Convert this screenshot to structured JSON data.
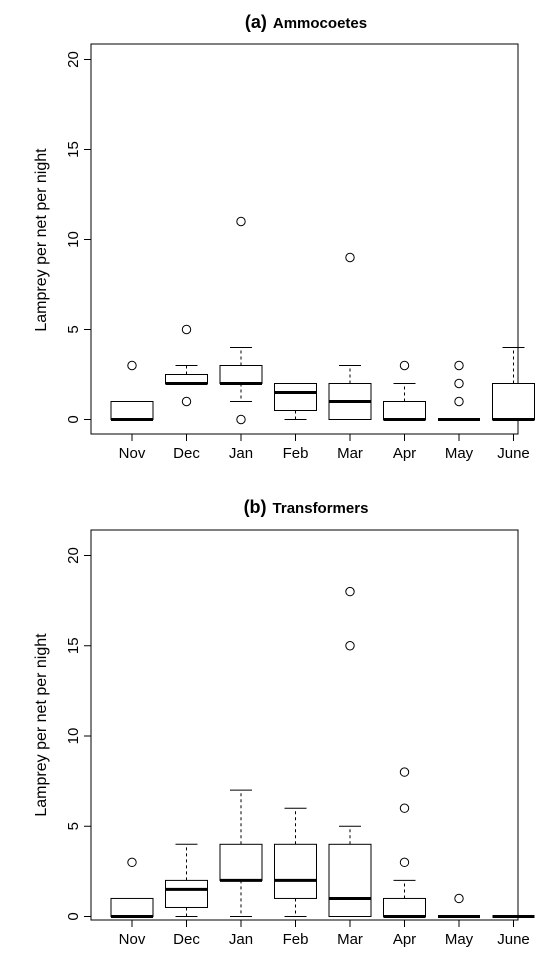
{
  "chart_data": [
    {
      "type": "boxplot",
      "title_tag": "(a)",
      "title_name": "Ammocoetes",
      "ylabel": "Lamprey per net per night",
      "xlabel": "",
      "ylim": [
        0,
        20
      ],
      "yticks": [
        0,
        5,
        10,
        15,
        20
      ],
      "grid": false,
      "categories": [
        "Nov",
        "Dec",
        "Jan",
        "Feb",
        "Mar",
        "Apr",
        "May",
        "June"
      ],
      "boxes": [
        {
          "category": "Nov",
          "q1": 0,
          "median": 0,
          "q3": 1,
          "whisker_low": 0,
          "whisker_high": 1,
          "outliers": [
            3
          ]
        },
        {
          "category": "Dec",
          "q1": 2,
          "median": 2,
          "q3": 2.5,
          "whisker_low": 2,
          "whisker_high": 3,
          "outliers": [
            5,
            1
          ]
        },
        {
          "category": "Jan",
          "q1": 2,
          "median": 2,
          "q3": 3,
          "whisker_low": 1,
          "whisker_high": 4,
          "outliers": [
            11,
            0
          ]
        },
        {
          "category": "Feb",
          "q1": 0.5,
          "median": 1.5,
          "q3": 2,
          "whisker_low": 0,
          "whisker_high": 2,
          "outliers": []
        },
        {
          "category": "Mar",
          "q1": 0,
          "median": 1,
          "q3": 2,
          "whisker_low": 0,
          "whisker_high": 3,
          "outliers": [
            9
          ]
        },
        {
          "category": "Apr",
          "q1": 0,
          "median": 0,
          "q3": 1,
          "whisker_low": 0,
          "whisker_high": 2,
          "outliers": [
            3
          ]
        },
        {
          "category": "May",
          "q1": 0,
          "median": 0,
          "q3": 0,
          "whisker_low": 0,
          "whisker_high": 0,
          "outliers": [
            3,
            2,
            1
          ]
        },
        {
          "category": "June",
          "q1": 0,
          "median": 0,
          "q3": 2,
          "whisker_low": 0,
          "whisker_high": 4,
          "outliers": []
        }
      ]
    },
    {
      "type": "boxplot",
      "title_tag": "(b)",
      "title_name": "Transformers",
      "ylabel": "Lamprey per net per night",
      "xlabel": "",
      "ylim": [
        0,
        20
      ],
      "yticks": [
        0,
        5,
        10,
        15,
        20
      ],
      "grid": false,
      "categories": [
        "Nov",
        "Dec",
        "Jan",
        "Feb",
        "Mar",
        "Apr",
        "May",
        "June"
      ],
      "boxes": [
        {
          "category": "Nov",
          "q1": 0,
          "median": 0,
          "q3": 1,
          "whisker_low": 0,
          "whisker_high": 1,
          "outliers": [
            3
          ]
        },
        {
          "category": "Dec",
          "q1": 0.5,
          "median": 1.5,
          "q3": 2,
          "whisker_low": 0,
          "whisker_high": 4,
          "outliers": []
        },
        {
          "category": "Jan",
          "q1": 2,
          "median": 2,
          "q3": 4,
          "whisker_low": 0,
          "whisker_high": 7,
          "outliers": []
        },
        {
          "category": "Feb",
          "q1": 1,
          "median": 2,
          "q3": 4,
          "whisker_low": 0,
          "whisker_high": 6,
          "outliers": []
        },
        {
          "category": "Mar",
          "q1": 0,
          "median": 1,
          "q3": 4,
          "whisker_low": 0,
          "whisker_high": 5,
          "outliers": [
            18,
            15
          ]
        },
        {
          "category": "Apr",
          "q1": 0,
          "median": 0,
          "q3": 1,
          "whisker_low": 0,
          "whisker_high": 2,
          "outliers": [
            8,
            6,
            3
          ]
        },
        {
          "category": "May",
          "q1": 0,
          "median": 0,
          "q3": 0,
          "whisker_low": 0,
          "whisker_high": 0,
          "outliers": [
            1
          ]
        },
        {
          "category": "June",
          "q1": 0,
          "median": 0,
          "q3": 0,
          "whisker_low": 0,
          "whisker_high": 0,
          "outliers": []
        }
      ]
    }
  ]
}
